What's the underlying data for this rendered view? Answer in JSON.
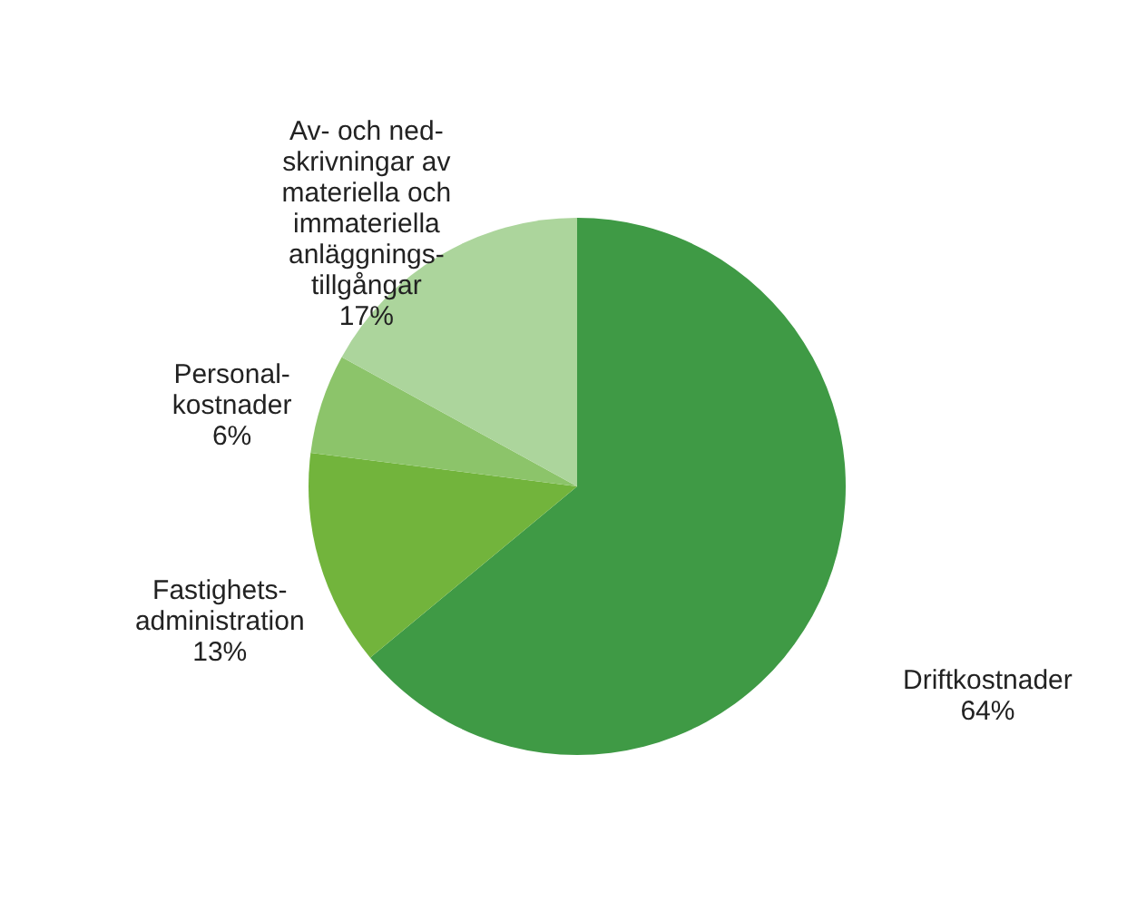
{
  "chart_data": {
    "type": "pie",
    "categories": [
      "Driftkostnader",
      "Fastighets-\nadministration",
      "Personal-\nkostnader",
      "Av- och ned-\nskrivningar av\nmateriella och\nimmateriella\nanläggnings-\ntillgångar"
    ],
    "values": [
      64,
      13,
      6,
      17
    ],
    "value_labels": [
      "64%",
      "13%",
      "6%",
      "17%"
    ],
    "colors": [
      "#3f9a45",
      "#72b43c",
      "#8cc46a",
      "#acd59c"
    ]
  }
}
